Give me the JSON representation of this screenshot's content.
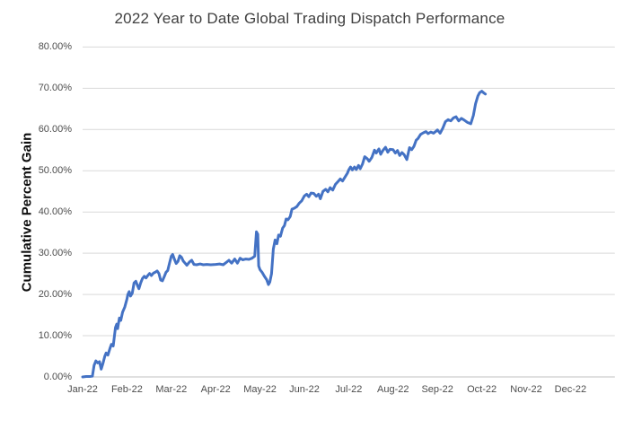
{
  "chart_data": {
    "type": "line",
    "title": "2022 Year to Date Global Trading Dispatch Performance",
    "xlabel": "",
    "ylabel": "Cumulative Percent Gain",
    "x_tick_labels": [
      "Jan-22",
      "Feb-22",
      "Mar-22",
      "Apr-22",
      "May-22",
      "Jun-22",
      "Jul-22",
      "Aug-22",
      "Sep-22",
      "Oct-22",
      "Nov-22",
      "Dec-22"
    ],
    "y_tick_labels": [
      "0.00%",
      "10.00%",
      "20.00%",
      "30.00%",
      "40.00%",
      "50.00%",
      "60.00%",
      "70.00%",
      "80.00%"
    ],
    "y_tick_values": [
      0,
      10,
      20,
      30,
      40,
      50,
      60,
      70,
      80
    ],
    "ylim": [
      0,
      80
    ],
    "x_axis_unit": "months since Jan-22",
    "grid": "horizontal",
    "legend": "none",
    "series": [
      {
        "name": "Cumulative Percent Gain",
        "points": [
          [
            0.0,
            0.0
          ],
          [
            0.08,
            0.1
          ],
          [
            0.16,
            0.1
          ],
          [
            0.22,
            0.2
          ],
          [
            0.26,
            2.8
          ],
          [
            0.3,
            3.9
          ],
          [
            0.34,
            3.4
          ],
          [
            0.38,
            3.7
          ],
          [
            0.42,
            1.9
          ],
          [
            0.46,
            3.3
          ],
          [
            0.5,
            5.0
          ],
          [
            0.53,
            5.8
          ],
          [
            0.57,
            5.3
          ],
          [
            0.62,
            7.0
          ],
          [
            0.65,
            7.9
          ],
          [
            0.69,
            7.5
          ],
          [
            0.74,
            12.0
          ],
          [
            0.77,
            12.8
          ],
          [
            0.79,
            11.7
          ],
          [
            0.83,
            14.3
          ],
          [
            0.86,
            13.7
          ],
          [
            0.9,
            15.7
          ],
          [
            0.95,
            16.9
          ],
          [
            1.0,
            18.9
          ],
          [
            1.02,
            20.0
          ],
          [
            1.05,
            20.7
          ],
          [
            1.08,
            19.6
          ],
          [
            1.12,
            20.3
          ],
          [
            1.16,
            22.8
          ],
          [
            1.2,
            23.2
          ],
          [
            1.24,
            22.1
          ],
          [
            1.27,
            21.4
          ],
          [
            1.31,
            22.8
          ],
          [
            1.35,
            23.9
          ],
          [
            1.39,
            24.4
          ],
          [
            1.43,
            24.0
          ],
          [
            1.47,
            24.6
          ],
          [
            1.51,
            25.1
          ],
          [
            1.55,
            24.6
          ],
          [
            1.6,
            25.2
          ],
          [
            1.64,
            25.4
          ],
          [
            1.68,
            25.7
          ],
          [
            1.72,
            25.1
          ],
          [
            1.76,
            23.5
          ],
          [
            1.8,
            23.3
          ],
          [
            1.84,
            24.3
          ],
          [
            1.88,
            25.4
          ],
          [
            1.92,
            25.8
          ],
          [
            1.96,
            27.6
          ],
          [
            2.0,
            29.3
          ],
          [
            2.03,
            29.7
          ],
          [
            2.07,
            28.5
          ],
          [
            2.11,
            27.5
          ],
          [
            2.15,
            28.0
          ],
          [
            2.19,
            29.4
          ],
          [
            2.23,
            29.0
          ],
          [
            2.27,
            28.1
          ],
          [
            2.31,
            27.6
          ],
          [
            2.35,
            27.1
          ],
          [
            2.41,
            27.9
          ],
          [
            2.46,
            28.3
          ],
          [
            2.51,
            27.3
          ],
          [
            2.57,
            27.2
          ],
          [
            2.65,
            27.4
          ],
          [
            2.72,
            27.2
          ],
          [
            2.8,
            27.3
          ],
          [
            2.89,
            27.2
          ],
          [
            3.0,
            27.3
          ],
          [
            3.09,
            27.4
          ],
          [
            3.17,
            27.2
          ],
          [
            3.24,
            27.8
          ],
          [
            3.3,
            28.3
          ],
          [
            3.36,
            27.6
          ],
          [
            3.43,
            28.6
          ],
          [
            3.49,
            27.6
          ],
          [
            3.55,
            28.8
          ],
          [
            3.61,
            28.4
          ],
          [
            3.68,
            28.6
          ],
          [
            3.75,
            28.5
          ],
          [
            3.82,
            28.8
          ],
          [
            3.88,
            29.3
          ],
          [
            3.92,
            35.2
          ],
          [
            3.95,
            34.6
          ],
          [
            3.97,
            26.9
          ],
          [
            4.0,
            26.0
          ],
          [
            4.05,
            25.3
          ],
          [
            4.1,
            24.4
          ],
          [
            4.15,
            23.6
          ],
          [
            4.19,
            22.4
          ],
          [
            4.22,
            23.0
          ],
          [
            4.26,
            25.0
          ],
          [
            4.3,
            31.0
          ],
          [
            4.34,
            33.2
          ],
          [
            4.38,
            32.3
          ],
          [
            4.42,
            34.4
          ],
          [
            4.46,
            34.1
          ],
          [
            4.51,
            36.1
          ],
          [
            4.55,
            36.7
          ],
          [
            4.59,
            38.3
          ],
          [
            4.63,
            38.1
          ],
          [
            4.68,
            38.9
          ],
          [
            4.72,
            40.7
          ],
          [
            4.77,
            40.9
          ],
          [
            4.83,
            41.3
          ],
          [
            4.88,
            42.1
          ],
          [
            4.94,
            42.7
          ],
          [
            5.0,
            43.9
          ],
          [
            5.05,
            44.3
          ],
          [
            5.1,
            43.7
          ],
          [
            5.15,
            44.6
          ],
          [
            5.21,
            44.5
          ],
          [
            5.27,
            43.8
          ],
          [
            5.32,
            44.3
          ],
          [
            5.36,
            43.2
          ],
          [
            5.42,
            45.0
          ],
          [
            5.48,
            45.5
          ],
          [
            5.53,
            44.9
          ],
          [
            5.58,
            45.9
          ],
          [
            5.64,
            45.3
          ],
          [
            5.7,
            46.7
          ],
          [
            5.76,
            47.4
          ],
          [
            5.81,
            48.0
          ],
          [
            5.86,
            47.5
          ],
          [
            5.92,
            48.5
          ],
          [
            5.97,
            49.4
          ],
          [
            6.0,
            50.2
          ],
          [
            6.04,
            50.9
          ],
          [
            6.08,
            50.2
          ],
          [
            6.13,
            50.9
          ],
          [
            6.17,
            50.3
          ],
          [
            6.22,
            51.3
          ],
          [
            6.26,
            50.5
          ],
          [
            6.31,
            51.6
          ],
          [
            6.36,
            53.4
          ],
          [
            6.42,
            52.9
          ],
          [
            6.46,
            52.3
          ],
          [
            6.52,
            53.2
          ],
          [
            6.58,
            55.0
          ],
          [
            6.62,
            54.3
          ],
          [
            6.68,
            55.3
          ],
          [
            6.72,
            54.0
          ],
          [
            6.77,
            54.9
          ],
          [
            6.83,
            55.7
          ],
          [
            6.88,
            54.5
          ],
          [
            6.93,
            55.2
          ],
          [
            7.0,
            55.1
          ],
          [
            7.05,
            54.3
          ],
          [
            7.1,
            54.9
          ],
          [
            7.15,
            53.7
          ],
          [
            7.2,
            54.4
          ],
          [
            7.25,
            53.9
          ],
          [
            7.31,
            52.7
          ],
          [
            7.37,
            55.6
          ],
          [
            7.42,
            55.1
          ],
          [
            7.47,
            55.9
          ],
          [
            7.52,
            57.4
          ],
          [
            7.56,
            57.8
          ],
          [
            7.62,
            58.8
          ],
          [
            7.68,
            59.2
          ],
          [
            7.74,
            59.5
          ],
          [
            7.79,
            59.0
          ],
          [
            7.85,
            59.4
          ],
          [
            7.91,
            59.1
          ],
          [
            7.96,
            59.5
          ],
          [
            8.0,
            59.9
          ],
          [
            8.06,
            59.1
          ],
          [
            8.12,
            60.3
          ],
          [
            8.18,
            61.9
          ],
          [
            8.24,
            62.4
          ],
          [
            8.3,
            62.1
          ],
          [
            8.36,
            62.8
          ],
          [
            8.42,
            63.1
          ],
          [
            8.48,
            62.1
          ],
          [
            8.54,
            62.7
          ],
          [
            8.6,
            62.3
          ],
          [
            8.68,
            61.7
          ],
          [
            8.75,
            61.4
          ],
          [
            8.81,
            63.4
          ],
          [
            8.86,
            66.3
          ],
          [
            8.91,
            68.1
          ],
          [
            8.95,
            68.9
          ],
          [
            9.0,
            69.3
          ],
          [
            9.04,
            68.9
          ],
          [
            9.08,
            68.6
          ]
        ]
      }
    ]
  },
  "colors": {
    "line": "#4472C4",
    "grid": "#D9D9D9",
    "axis": "#C0C0C0",
    "title": "#3F3F3F",
    "tick": "#4D4D4D",
    "background": "#FFFFFF"
  }
}
